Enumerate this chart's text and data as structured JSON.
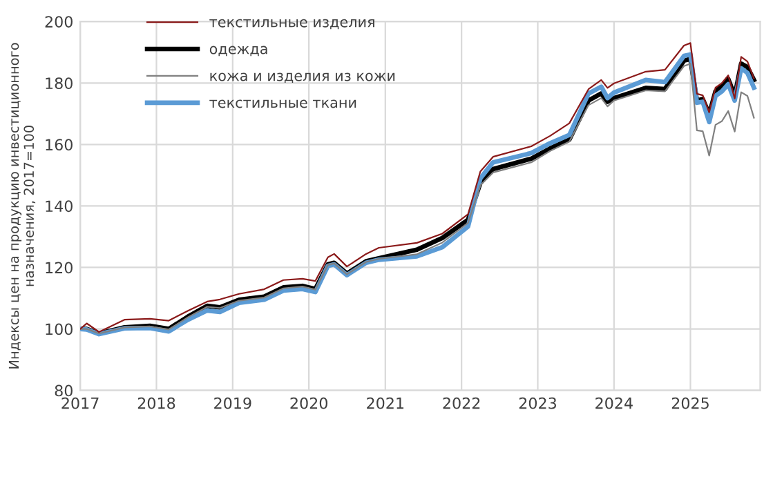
{
  "chart_data": {
    "type": "line",
    "ylabel": "Индексы цен на продукцию инвестиционного\nназначения, 2017=100",
    "x": [
      "2017-01",
      "2017-02",
      "2017-04",
      "2017-08",
      "2017-12",
      "2018-03",
      "2018-06",
      "2018-09",
      "2018-11",
      "2019-02",
      "2019-06",
      "2019-09",
      "2019-12",
      "2020-02",
      "2020-04",
      "2020-05",
      "2020-07",
      "2020-10",
      "2020-12",
      "2021-06",
      "2021-10",
      "2022-02",
      "2022-04",
      "2022-06",
      "2022-12",
      "2023-03",
      "2023-06",
      "2023-09",
      "2023-11",
      "2023-12",
      "2024-01",
      "2024-06",
      "2024-09",
      "2024-12",
      "2025-01",
      "2025-02",
      "2025-03",
      "2025-04",
      "2025-05",
      "2025-06",
      "2025-07",
      "2025-08",
      "2025-09",
      "2025-10",
      "2025-11"
    ],
    "series": [
      {
        "name": "текстильные изделия",
        "color": "#8b1a1a",
        "values": [
          100,
          101.8,
          99,
          103,
          103.3,
          102.7,
          105.9,
          108.9,
          109.6,
          111.4,
          112.9,
          115.9,
          116.3,
          115.6,
          123.3,
          124.4,
          120.3,
          124.4,
          126.4,
          128,
          131,
          137.3,
          151.2,
          156,
          159.4,
          162.8,
          166.9,
          178,
          181,
          178.4,
          179.9,
          183.7,
          184.3,
          192.2,
          193,
          176.5,
          176,
          170.5,
          178.5,
          180,
          182.5,
          175,
          188.5,
          187,
          181.5
        ]
      },
      {
        "name": "одежда",
        "color": "#000000",
        "values": [
          100,
          100,
          98.5,
          100.5,
          101,
          100,
          104,
          107.5,
          107,
          109.5,
          110.5,
          113.5,
          114,
          113,
          121,
          121.5,
          118,
          122,
          123,
          125.8,
          129.6,
          135.5,
          147.5,
          152,
          155.4,
          158.7,
          161.6,
          174.3,
          176.6,
          173.9,
          175.1,
          178.4,
          178,
          187.3,
          187.8,
          174.3,
          174.8,
          169.9,
          177.3,
          179.1,
          181.3,
          175.8,
          186.3,
          185.2,
          181
        ]
      },
      {
        "name": "кожа и изделия из кожи",
        "color": "#808080",
        "values": [
          100,
          100,
          98.5,
          100.5,
          100.8,
          99.8,
          103.8,
          107.2,
          106.8,
          109.2,
          110.2,
          113.2,
          113.8,
          112.8,
          120.8,
          121.3,
          117.8,
          121.8,
          122.8,
          124.3,
          128.1,
          134.5,
          146.7,
          150.9,
          154.2,
          157.9,
          160.9,
          172.8,
          175.1,
          172.4,
          174.3,
          177.6,
          177.3,
          185.5,
          186.3,
          164.6,
          164.3,
          156.4,
          166.4,
          167.6,
          170.9,
          164.2,
          177,
          175.8,
          168.7
        ]
      },
      {
        "name": "текстильные ткани",
        "color": "#5b9bd5",
        "values": [
          100,
          99.8,
          98.3,
          100.2,
          100.3,
          99.2,
          103,
          106,
          105.5,
          108.5,
          109.5,
          112.5,
          113,
          112,
          120.5,
          121,
          117.5,
          121.5,
          122.5,
          123.6,
          126.6,
          133.3,
          149,
          154.2,
          157.2,
          160.4,
          163.1,
          176.6,
          178.8,
          175.1,
          176.9,
          181,
          180.3,
          188.8,
          189.3,
          173.6,
          173.9,
          167.3,
          175.8,
          177.3,
          179.6,
          174.3,
          184.8,
          183.3,
          178.5
        ]
      }
    ],
    "xlim": [
      "2017-01",
      "2025-12"
    ],
    "xticks": [
      {
        "value": "2017-01",
        "label": "2017"
      },
      {
        "value": "2018-01",
        "label": "2018"
      },
      {
        "value": "2019-01",
        "label": "2019"
      },
      {
        "value": "2020-01",
        "label": "2020"
      },
      {
        "value": "2021-01",
        "label": "2021"
      },
      {
        "value": "2022-01",
        "label": "2022"
      },
      {
        "value": "2023-01",
        "label": "2023"
      },
      {
        "value": "2024-01",
        "label": "2024"
      },
      {
        "value": "2025-01",
        "label": "2025"
      }
    ],
    "ylim": [
      80,
      200
    ],
    "yticks": [
      80,
      100,
      120,
      140,
      160,
      180,
      200
    ],
    "grid": true,
    "legend": "top left",
    "marker": "none",
    "line_style": "solid"
  }
}
